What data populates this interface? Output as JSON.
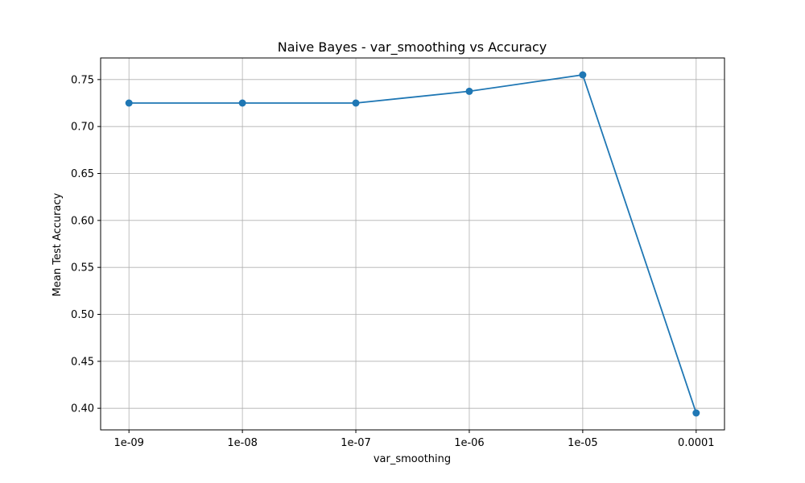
{
  "chart_data": {
    "type": "line",
    "title": "Naive Bayes - var_smoothing vs Accuracy",
    "xlabel": "var_smoothing",
    "ylabel": "Mean Test Accuracy",
    "categories": [
      "1e-09",
      "1e-08",
      "1e-07",
      "1e-06",
      "1e-05",
      "0.0001"
    ],
    "series": [
      {
        "values": [
          0.725,
          0.725,
          0.725,
          0.7375,
          0.755,
          0.395
        ],
        "color": "#1f77b4",
        "marker": "circle"
      }
    ],
    "yticks": [
      "0.40",
      "0.45",
      "0.50",
      "0.55",
      "0.60",
      "0.65",
      "0.70",
      "0.75"
    ],
    "ylim": [
      0.377,
      0.773
    ],
    "grid": true,
    "legend": "none"
  }
}
